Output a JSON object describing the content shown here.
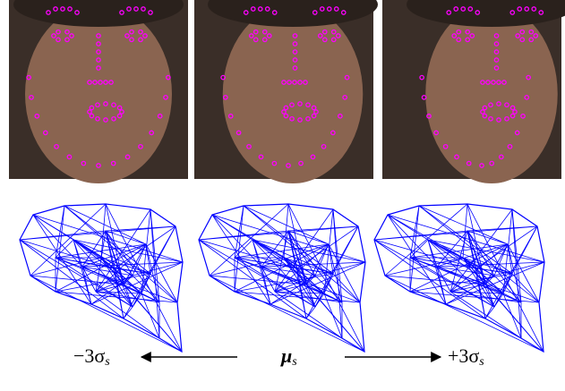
{
  "labels": {
    "left": {
      "main": "−3σ",
      "sub": "s"
    },
    "center": {
      "main": "μ",
      "sub": "s"
    },
    "right": {
      "main": "+3σ",
      "sub": "s"
    }
  }
}
